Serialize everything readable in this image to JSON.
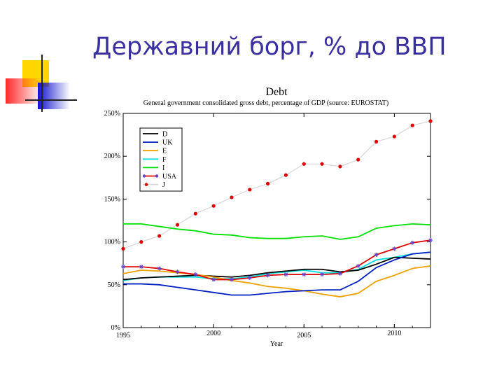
{
  "slide": {
    "title": "Державний борг, % до ВВП"
  },
  "colors": {
    "title": "#3a2fa0",
    "deco_yellow": "#ffd700",
    "deco_red": "#ff4040",
    "deco_blue": "#1a1ad0"
  },
  "chart_data": {
    "type": "line",
    "title": "Debt",
    "subtitle": "General government consolidated gross debt, percentage of GDP (source: EUROSTAT)",
    "xlabel": "Year",
    "ylabel": "",
    "xlim": [
      1995,
      2012
    ],
    "ylim": [
      0,
      250
    ],
    "x_ticks": [
      1995,
      2000,
      2005,
      2010
    ],
    "x_tick_labels": [
      "1995",
      "2000",
      "2005",
      "2010"
    ],
    "y_ticks": [
      0,
      50,
      100,
      150,
      200,
      250
    ],
    "y_tick_labels": [
      "0%",
      "50%",
      "100%",
      "150%",
      "200%",
      "250%"
    ],
    "legend_position": "top-left",
    "grid": false,
    "x": [
      1995,
      1996,
      1997,
      1998,
      1999,
      2000,
      2001,
      2002,
      2003,
      2004,
      2005,
      2006,
      2007,
      2008,
      2009,
      2010,
      2011,
      2012
    ],
    "series": [
      {
        "name": "D",
        "color": "#000000",
        "marker": "none",
        "values": [
          56,
          58,
          59,
          60,
          61,
          60,
          59,
          61,
          64,
          66,
          68,
          68,
          65,
          67,
          74,
          82,
          81,
          80
        ]
      },
      {
        "name": "UK",
        "color": "#0020c0",
        "marker": "none",
        "values": [
          51,
          51,
          50,
          47,
          44,
          41,
          38,
          38,
          40,
          42,
          43,
          44,
          44,
          54,
          70,
          79,
          86,
          88
        ]
      },
      {
        "name": "E",
        "color": "#f0a000",
        "marker": "none",
        "values": [
          63,
          67,
          66,
          64,
          62,
          59,
          55,
          52,
          48,
          46,
          43,
          39,
          36,
          40,
          54,
          61,
          69,
          72
        ]
      },
      {
        "name": "F",
        "color": "#00e0e0",
        "marker": "none",
        "values": [
          55,
          58,
          59,
          59,
          59,
          57,
          57,
          59,
          63,
          65,
          67,
          64,
          64,
          68,
          79,
          82,
          86,
          88
        ]
      },
      {
        "name": "I",
        "color": "#00e000",
        "marker": "none",
        "values": [
          121,
          121,
          118,
          115,
          113,
          109,
          108,
          105,
          104,
          104,
          106,
          107,
          103,
          106,
          116,
          119,
          121,
          120
        ]
      },
      {
        "name": "USA",
        "color": "#e00000",
        "marker": "star",
        "values": [
          71,
          71,
          69,
          65,
          62,
          56,
          56,
          58,
          61,
          62,
          62,
          62,
          63,
          72,
          85,
          92,
          99,
          102
        ]
      },
      {
        "name": "J",
        "color": "#d8d8d8",
        "marker": "dot",
        "values": [
          92,
          100,
          107,
          120,
          133,
          142,
          152,
          161,
          168,
          178,
          191,
          191,
          188,
          196,
          217,
          223,
          236,
          241
        ]
      }
    ]
  }
}
